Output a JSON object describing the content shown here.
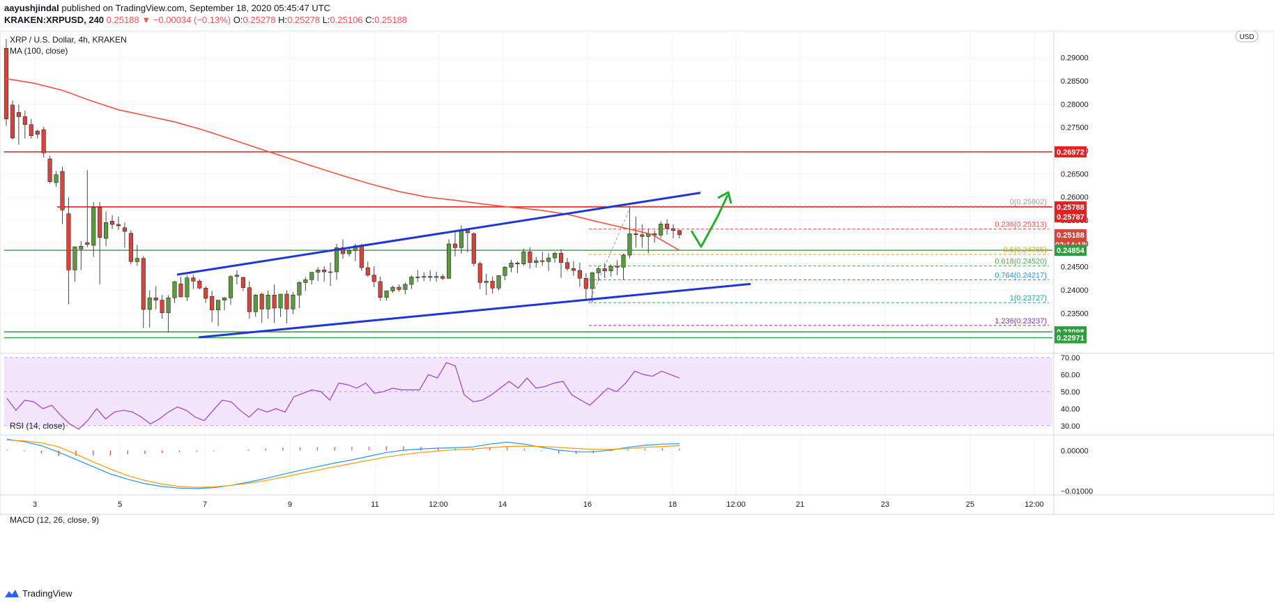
{
  "header": {
    "author": "aayushjindal",
    "published_text": "published on TradingView.com, September 18, 2020 05:45:47 UTC",
    "symbol": "KRAKEN:XRPUSD, 240",
    "price": "0.25188",
    "change": "▼ −0.00034 (−0.13%)",
    "ohlc": {
      "O": "0.25278",
      "H": "0.25278",
      "L": "0.25106",
      "C": "0.25188"
    }
  },
  "footer": {
    "brand": "TradingView"
  },
  "colors": {
    "candle_up": "#5b9a3c",
    "candle_down": "#d9433a",
    "ma_line": "#f0523f",
    "channel": "#1f35d6",
    "resistance": "#e02222",
    "support": "#2e9e3c",
    "rsi_line": "#a23ad6",
    "macd_line": "#2196f3",
    "signal_line": "#ff9800",
    "arrow": "#22b02c"
  },
  "chart_data": {
    "type": "candlestick",
    "title": "XRP / U.S. Dollar, 4h, KRAKEN",
    "currency_label": "USD",
    "indicator_label": "MA (100, close)",
    "ylim": [
      0.2265,
      0.2955
    ],
    "y_ticks": [
      "0.29000",
      "0.28500",
      "0.28000",
      "0.27500",
      "0.27000",
      "0.26500",
      "0.26000",
      "0.25500",
      "0.25000",
      "0.24500",
      "0.24000",
      "0.23500"
    ],
    "x_ticks": [
      "3",
      "5",
      "7",
      "9",
      "11",
      "12:00",
      "14",
      "16",
      "18",
      "12:00",
      "21",
      "23",
      "25",
      "12:00"
    ],
    "price_levels": [
      {
        "label": "0.26972",
        "value": 0.26972,
        "kind": "resistance"
      },
      {
        "label": "0.25788",
        "value": 0.25788,
        "kind": "resistance"
      },
      {
        "label": "0.25787",
        "value": 0.25787,
        "kind": "resistance"
      },
      {
        "label": "0.25188",
        "value": 0.25188,
        "kind": "last"
      },
      {
        "label": "02:14:18",
        "value": 0.2495,
        "kind": "countdown"
      },
      {
        "label": "0.24854",
        "value": 0.24854,
        "kind": "support"
      },
      {
        "label": "0.23098",
        "value": 0.23098,
        "kind": "support"
      },
      {
        "label": "0.22971",
        "value": 0.22971,
        "kind": "support"
      }
    ],
    "fibonacci": [
      {
        "label": "0(0.25802)",
        "value": 0.25802
      },
      {
        "label": "0.236(0.25313)",
        "value": 0.25313
      },
      {
        "label": "0.5(0.24765)",
        "value": 0.24765
      },
      {
        "label": "0.618(0.24520)",
        "value": 0.2452
      },
      {
        "label": "0.764(0.24217)",
        "value": 0.24217
      },
      {
        "label": "1(0.23727)",
        "value": 0.23727
      },
      {
        "label": "1.236(0.23237)",
        "value": 0.23237
      }
    ],
    "channel": {
      "upper": [
        [
          0.2433,
          0.2609
        ]
      ],
      "lower": [
        [
          0.2298,
          0.2413
        ]
      ]
    },
    "ma_100": [
      0.2855,
      0.2845,
      0.283,
      0.2808,
      0.2788,
      0.2775,
      0.2762,
      0.2745,
      0.2725,
      0.2705,
      0.2685,
      0.2665,
      0.2646,
      0.2628,
      0.2612,
      0.26,
      0.2593,
      0.2585,
      0.2578,
      0.2572,
      0.2563,
      0.2548,
      0.2534,
      0.252,
      0.2485
    ],
    "candles": [
      [
        0.292,
        0.294,
        0.2753,
        0.2768
      ],
      [
        0.2798,
        0.2808,
        0.2724,
        0.2727
      ],
      [
        0.2782,
        0.2799,
        0.2713,
        0.2773
      ],
      [
        0.2773,
        0.2786,
        0.2726,
        0.2756
      ],
      [
        0.2756,
        0.2768,
        0.2726,
        0.2732
      ],
      [
        0.2742,
        0.2745,
        0.2726,
        0.2735
      ],
      [
        0.2745,
        0.2751,
        0.2685,
        0.2695
      ],
      [
        0.2682,
        0.2689,
        0.2629,
        0.2633
      ],
      [
        0.2631,
        0.2656,
        0.2622,
        0.2648
      ],
      [
        0.2655,
        0.2665,
        0.2542,
        0.2572
      ],
      [
        0.2564,
        0.2599,
        0.2369,
        0.2443
      ],
      [
        0.2443,
        0.2493,
        0.2418,
        0.2493
      ],
      [
        0.2488,
        0.2505,
        0.2443,
        0.2494
      ],
      [
        0.2502,
        0.2658,
        0.2492,
        0.2498
      ],
      [
        0.2496,
        0.2589,
        0.2471,
        0.2578
      ],
      [
        0.2578,
        0.2589,
        0.2412,
        0.2513
      ],
      [
        0.2511,
        0.2569,
        0.2494,
        0.2545
      ],
      [
        0.2548,
        0.2561,
        0.2531,
        0.2541
      ],
      [
        0.2541,
        0.2558,
        0.2529,
        0.2538
      ],
      [
        0.2534,
        0.2545,
        0.2491,
        0.2526
      ],
      [
        0.2522,
        0.2528,
        0.2455,
        0.2461
      ],
      [
        0.2461,
        0.2497,
        0.2452,
        0.2468
      ],
      [
        0.2468,
        0.2473,
        0.2318,
        0.2358
      ],
      [
        0.2358,
        0.2399,
        0.2319,
        0.2383
      ],
      [
        0.2383,
        0.2408,
        0.2358,
        0.2378
      ],
      [
        0.2378,
        0.2389,
        0.2338,
        0.2351
      ],
      [
        0.2351,
        0.2389,
        0.2309,
        0.2383
      ],
      [
        0.2383,
        0.2419,
        0.2372,
        0.2418
      ],
      [
        0.2413,
        0.2428,
        0.2385,
        0.2385
      ],
      [
        0.2385,
        0.2432,
        0.2376,
        0.2426
      ],
      [
        0.2426,
        0.2433,
        0.2402,
        0.2419
      ],
      [
        0.2419,
        0.2423,
        0.2402,
        0.2404
      ],
      [
        0.2404,
        0.2408,
        0.2372,
        0.2382
      ],
      [
        0.2386,
        0.2398,
        0.2331,
        0.2357
      ],
      [
        0.2357,
        0.2378,
        0.2322,
        0.2378
      ],
      [
        0.2378,
        0.2385,
        0.2356,
        0.2383
      ],
      [
        0.2383,
        0.2432,
        0.2368,
        0.2429
      ],
      [
        0.2429,
        0.2442,
        0.2412,
        0.2432
      ],
      [
        0.2427,
        0.2428,
        0.2398,
        0.2405
      ],
      [
        0.2405,
        0.2419,
        0.2338,
        0.2353
      ],
      [
        0.2353,
        0.2391,
        0.2342,
        0.2389
      ],
      [
        0.2391,
        0.2394,
        0.2329,
        0.2359
      ],
      [
        0.2359,
        0.2399,
        0.2338,
        0.2389
      ],
      [
        0.2389,
        0.2412,
        0.2329,
        0.2361
      ],
      [
        0.2361,
        0.2391,
        0.2342,
        0.2391
      ],
      [
        0.2391,
        0.2399,
        0.2328,
        0.2359
      ],
      [
        0.2359,
        0.2395,
        0.2348,
        0.2389
      ],
      [
        0.2389,
        0.2419,
        0.2361,
        0.2416
      ],
      [
        0.2416,
        0.2428,
        0.2398,
        0.2422
      ],
      [
        0.2422,
        0.2438,
        0.2412,
        0.2438
      ],
      [
        0.2438,
        0.2449,
        0.2419,
        0.2443
      ],
      [
        0.2443,
        0.2451,
        0.2418,
        0.2439
      ],
      [
        0.2439,
        0.2459,
        0.2409,
        0.2439
      ],
      [
        0.2439,
        0.2499,
        0.2422,
        0.2491
      ],
      [
        0.2491,
        0.2509,
        0.2467,
        0.2478
      ],
      [
        0.2478,
        0.2489,
        0.2472,
        0.2485
      ],
      [
        0.2485,
        0.2499,
        0.2462,
        0.2495
      ],
      [
        0.2495,
        0.2499,
        0.2441,
        0.2448
      ],
      [
        0.2448,
        0.2461,
        0.2428,
        0.2432
      ],
      [
        0.2432,
        0.2451,
        0.2406,
        0.2418
      ],
      [
        0.2418,
        0.2429,
        0.2377,
        0.2384
      ],
      [
        0.2384,
        0.2399,
        0.2377,
        0.2398
      ],
      [
        0.2398,
        0.2409,
        0.2394,
        0.2406
      ],
      [
        0.2406,
        0.2412,
        0.2396,
        0.2401
      ],
      [
        0.2401,
        0.2416,
        0.2391,
        0.2412
      ],
      [
        0.2412,
        0.2431,
        0.2402,
        0.2428
      ],
      [
        0.2428,
        0.2443,
        0.2417,
        0.2428
      ],
      [
        0.2428,
        0.2438,
        0.2419,
        0.2429
      ],
      [
        0.2429,
        0.2442,
        0.2419,
        0.2427
      ],
      [
        0.2427,
        0.2439,
        0.2418,
        0.2429
      ],
      [
        0.2429,
        0.2434,
        0.2421,
        0.2425
      ],
      [
        0.2425,
        0.2509,
        0.2424,
        0.2499
      ],
      [
        0.2499,
        0.2529,
        0.2472,
        0.2491
      ],
      [
        0.2491,
        0.2539,
        0.2478,
        0.2528
      ],
      [
        0.2528,
        0.2532,
        0.2481,
        0.2523
      ],
      [
        0.2521,
        0.2524,
        0.2451,
        0.2457
      ],
      [
        0.2457,
        0.2461,
        0.2402,
        0.2416
      ],
      [
        0.2416,
        0.2435,
        0.2389,
        0.2419
      ],
      [
        0.2419,
        0.2429,
        0.2392,
        0.2404
      ],
      [
        0.2404,
        0.2432,
        0.2399,
        0.2431
      ],
      [
        0.2431,
        0.2451,
        0.2421,
        0.2449
      ],
      [
        0.2449,
        0.2465,
        0.2438,
        0.2458
      ],
      [
        0.2458,
        0.2461,
        0.2436,
        0.2456
      ],
      [
        0.2456,
        0.2489,
        0.2452,
        0.2482
      ],
      [
        0.2482,
        0.2492,
        0.2446,
        0.2459
      ],
      [
        0.2459,
        0.2471,
        0.2448,
        0.2463
      ],
      [
        0.2463,
        0.2482,
        0.2452,
        0.2461
      ],
      [
        0.2461,
        0.2479,
        0.2441,
        0.2469
      ],
      [
        0.2469,
        0.2482,
        0.2459,
        0.2479
      ],
      [
        0.2479,
        0.2488,
        0.2426,
        0.2459
      ],
      [
        0.2459,
        0.2469,
        0.2441,
        0.2446
      ],
      [
        0.2446,
        0.2462,
        0.2431,
        0.2442
      ],
      [
        0.2442,
        0.2459,
        0.2407,
        0.2425
      ],
      [
        0.2425,
        0.2436,
        0.2381,
        0.2403
      ],
      [
        0.2403,
        0.2439,
        0.2373,
        0.2437
      ],
      [
        0.2437,
        0.2451,
        0.2419,
        0.2446
      ],
      [
        0.2446,
        0.2458,
        0.2425,
        0.2441
      ],
      [
        0.2441,
        0.2455,
        0.2429,
        0.2451
      ],
      [
        0.2451,
        0.2464,
        0.2432,
        0.2449
      ],
      [
        0.2449,
        0.2478,
        0.2422,
        0.2475
      ],
      [
        0.2475,
        0.2579,
        0.2468,
        0.2521
      ],
      [
        0.2521,
        0.2558,
        0.2491,
        0.2519
      ],
      [
        0.2519,
        0.2541,
        0.2491,
        0.2515
      ],
      [
        0.2515,
        0.2532,
        0.2479,
        0.2521
      ],
      [
        0.2521,
        0.2528,
        0.2502,
        0.2518
      ],
      [
        0.2518,
        0.2548,
        0.2512,
        0.2542
      ],
      [
        0.2542,
        0.2552,
        0.2519,
        0.2532
      ],
      [
        0.2532,
        0.2541,
        0.2511,
        0.2528
      ],
      [
        0.2528,
        0.2529,
        0.2511,
        0.2519
      ]
    ],
    "rsi": {
      "label": "RSI (14, close)",
      "ylim": [
        25,
        72
      ],
      "ticks": [
        "70.00",
        "60.00",
        "50.00",
        "40.00",
        "30.00"
      ],
      "band": [
        30,
        70
      ],
      "values": [
        46,
        39,
        45,
        44,
        40,
        42,
        36,
        31,
        28,
        33,
        40,
        34,
        38,
        39,
        38,
        35,
        31,
        34,
        38,
        41,
        39,
        35,
        33,
        39,
        45,
        44,
        39,
        35,
        40,
        38,
        40,
        38,
        47,
        49,
        51,
        50,
        45,
        55,
        54,
        52,
        55,
        49,
        50,
        52,
        51,
        51,
        51,
        60,
        58,
        67,
        65,
        48,
        44,
        45,
        48,
        52,
        56,
        52,
        58,
        52,
        53,
        55,
        56,
        48,
        45,
        42,
        47,
        52,
        50,
        55,
        62,
        60,
        59,
        62,
        60,
        58
      ]
    },
    "macd": {
      "label": "MACD (12, 26, close, 9)",
      "ylim": [
        -0.0108,
        0.0037
      ],
      "ticks": [
        "0.00000",
        "−0.01000"
      ],
      "macd_line": [
        0.0028,
        0.0022,
        0.0012,
        -0.0004,
        -0.0022,
        -0.004,
        -0.0058,
        -0.0071,
        -0.0082,
        -0.0089,
        -0.0093,
        -0.0094,
        -0.0092,
        -0.0086,
        -0.0078,
        -0.0069,
        -0.0059,
        -0.0049,
        -0.004,
        -0.0031,
        -0.0023,
        -0.0014,
        -0.0005,
        0.0001,
        0.0004,
        0.0006,
        0.0007,
        0.0009,
        0.0016,
        0.0021,
        0.0016,
        0.0008,
        0.0001,
        -0.0003,
        -0.0003,
        0.0001,
        0.0008,
        0.0013,
        0.0016,
        0.0017
      ],
      "signal_line": [
        0.0026,
        0.0024,
        0.0019,
        0.0009,
        -0.0009,
        -0.0028,
        -0.0046,
        -0.0062,
        -0.0074,
        -0.0083,
        -0.0089,
        -0.0091,
        -0.009,
        -0.0086,
        -0.0081,
        -0.0074,
        -0.0066,
        -0.0057,
        -0.0049,
        -0.004,
        -0.0032,
        -0.0024,
        -0.0016,
        -0.001,
        -0.0005,
        -0.0001,
        0.0002,
        0.0004,
        0.0007,
        0.001,
        0.0011,
        0.001,
        0.0008,
        0.0005,
        0.0003,
        0.0003,
        0.0005,
        0.0008,
        0.001,
        0.0012
      ]
    }
  }
}
